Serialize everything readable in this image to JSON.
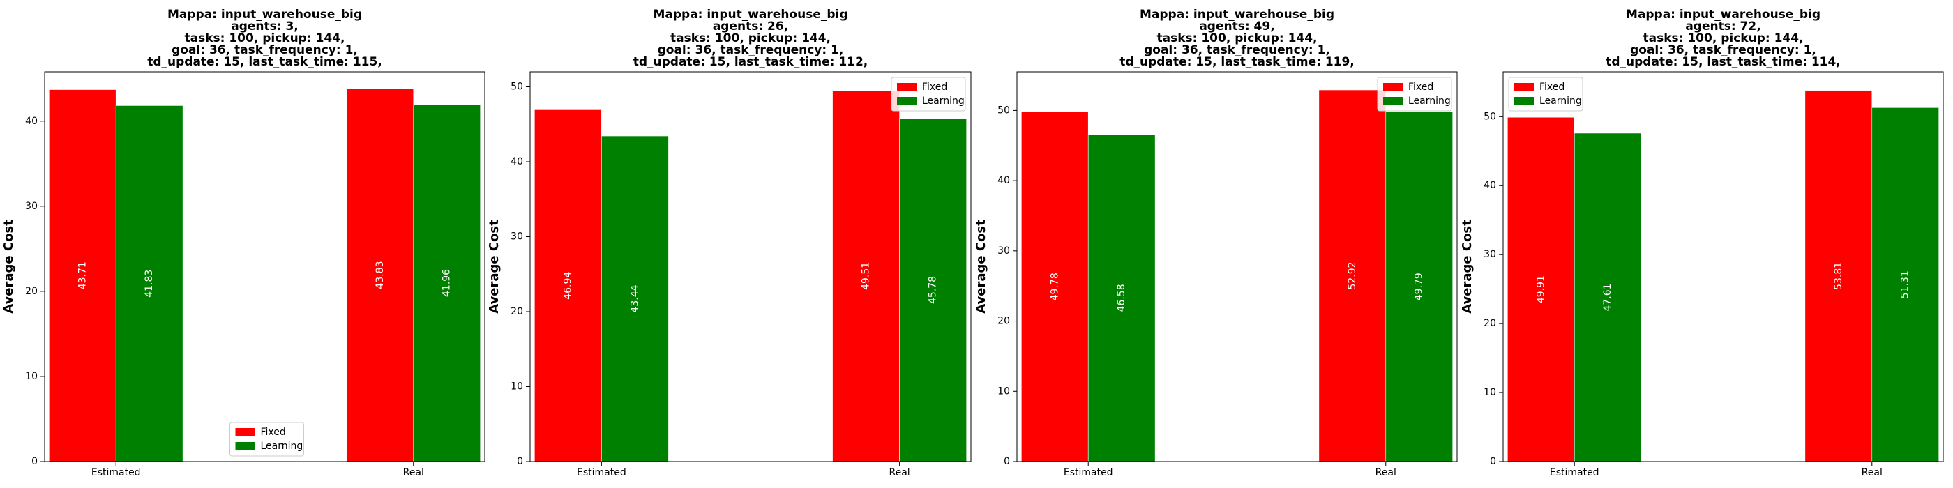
{
  "colors": {
    "Fixed": "#ff0000",
    "Learning": "#008000"
  },
  "chart_data": [
    {
      "type": "bar",
      "title": "Mappa: input_warehouse_big\nagents: 3,\ntasks: 100, pickup: 144,\ngoal: 36, task_frequency: 1,\ntd_update: 15, last_task_time: 115,",
      "categories": [
        "Estimated",
        "Real"
      ],
      "series": [
        {
          "name": "Fixed",
          "values": [
            43.71,
            43.83
          ]
        },
        {
          "name": "Learning",
          "values": [
            41.83,
            41.96
          ]
        }
      ],
      "ylabel": "Average Cost",
      "xlabel": "",
      "ylim": [
        0,
        45.8
      ],
      "yticks": [
        0,
        10,
        20,
        30,
        40
      ],
      "legend": "lower center"
    },
    {
      "type": "bar",
      "title": "Mappa: input_warehouse_big\nagents: 26,\ntasks: 100, pickup: 144,\ngoal: 36, task_frequency: 1,\ntd_update: 15, last_task_time: 112,",
      "categories": [
        "Estimated",
        "Real"
      ],
      "series": [
        {
          "name": "Fixed",
          "values": [
            46.94,
            49.51
          ]
        },
        {
          "name": "Learning",
          "values": [
            43.44,
            45.78
          ]
        }
      ],
      "ylabel": "Average Cost",
      "xlabel": "",
      "ylim": [
        0,
        52
      ],
      "yticks": [
        0,
        10,
        20,
        30,
        40,
        50
      ],
      "legend": "upper right"
    },
    {
      "type": "bar",
      "title": "Mappa: input_warehouse_big\nagents: 49,\ntasks: 100, pickup: 144,\ngoal: 36, task_frequency: 1,\ntd_update: 15, last_task_time: 119,",
      "categories": [
        "Estimated",
        "Real"
      ],
      "series": [
        {
          "name": "Fixed",
          "values": [
            49.78,
            52.92
          ]
        },
        {
          "name": "Learning",
          "values": [
            46.58,
            49.79
          ]
        }
      ],
      "ylabel": "Average Cost",
      "xlabel": "",
      "ylim": [
        0,
        55.5
      ],
      "yticks": [
        0,
        10,
        20,
        30,
        40,
        50
      ],
      "legend": "upper right"
    },
    {
      "type": "bar",
      "title": "Mappa: input_warehouse_big\nagents: 72,\ntasks: 100, pickup: 144,\ngoal: 36, task_frequency: 1,\ntd_update: 15, last_task_time: 114,",
      "categories": [
        "Estimated",
        "Real"
      ],
      "series": [
        {
          "name": "Fixed",
          "values": [
            49.91,
            53.81
          ]
        },
        {
          "name": "Learning",
          "values": [
            47.61,
            51.31
          ]
        }
      ],
      "ylabel": "Average Cost",
      "xlabel": "",
      "ylim": [
        0,
        56.5
      ],
      "yticks": [
        0,
        10,
        20,
        30,
        40,
        50
      ],
      "legend": "upper left"
    }
  ]
}
